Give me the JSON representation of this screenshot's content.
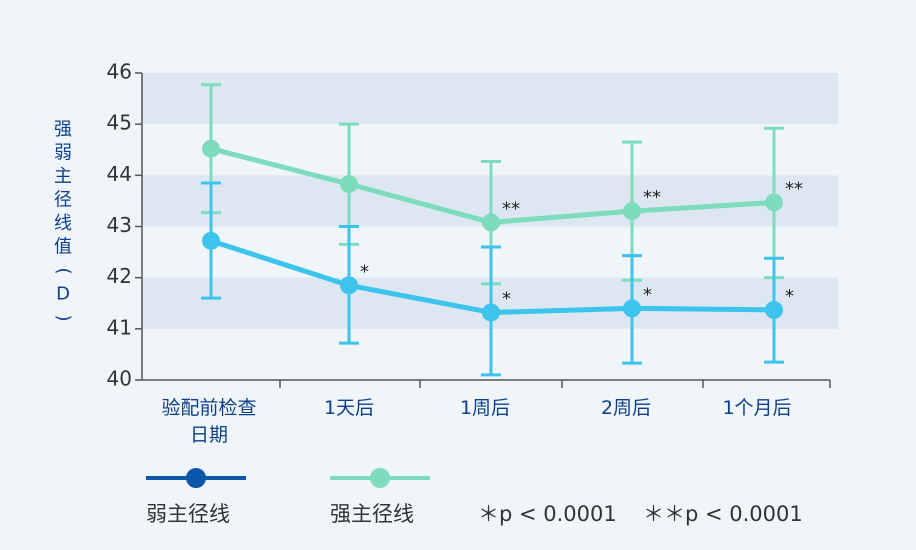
{
  "chart_data": {
    "type": "line",
    "ylabel": "强弱主径线值（D）",
    "ylim": [
      40,
      46
    ],
    "yticks": [
      40,
      41,
      42,
      43,
      44,
      45,
      46
    ],
    "categories": [
      "验配前检查日期",
      "1天后",
      "1周后",
      "2周后",
      "1个月后"
    ],
    "grid": "alternating horizontal bands",
    "series": [
      {
        "name": "弱主径线",
        "color": "#3cc4ec",
        "legend_color": "#0a56a8",
        "values": [
          42.72,
          41.85,
          41.32,
          41.4,
          41.37
        ],
        "error_upper": [
          43.85,
          43.0,
          42.6,
          42.43,
          42.38
        ],
        "error_lower": [
          41.6,
          40.72,
          40.1,
          40.33,
          40.35
        ],
        "significance": [
          "",
          "*",
          "*",
          "*",
          "*"
        ]
      },
      {
        "name": "强主径线",
        "color": "#7ddcbe",
        "legend_color": "#7ddcbe",
        "values": [
          44.52,
          43.83,
          43.08,
          43.3,
          43.47
        ],
        "error_upper": [
          45.77,
          45.0,
          44.27,
          44.65,
          44.92
        ],
        "error_lower": [
          43.27,
          42.65,
          41.88,
          41.95,
          42.0
        ],
        "significance": [
          "",
          "",
          "**",
          "**",
          "**"
        ]
      }
    ],
    "notes": [
      "＊p < 0.0001",
      "＊＊p < 0.0001"
    ]
  }
}
